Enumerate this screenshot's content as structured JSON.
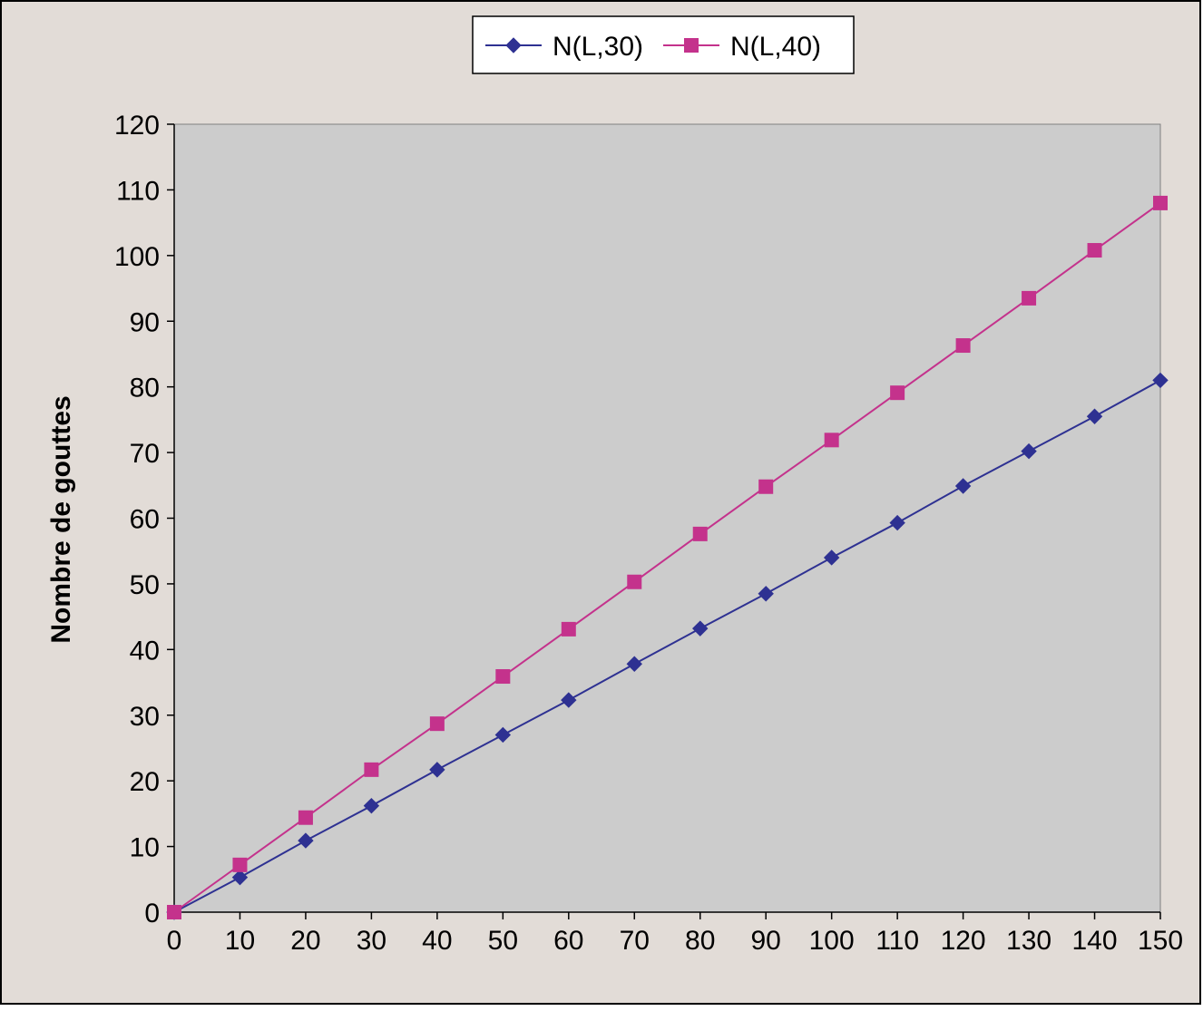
{
  "chart_data": {
    "type": "line",
    "title": "",
    "xlabel": "",
    "ylabel": "Nombre de gouttes",
    "x": [
      0,
      10,
      20,
      30,
      40,
      50,
      60,
      70,
      80,
      90,
      100,
      110,
      120,
      130,
      140,
      150
    ],
    "xlim": [
      0,
      150
    ],
    "ylim": [
      0,
      120
    ],
    "x_ticks": [
      "0",
      "10",
      "20",
      "30",
      "40",
      "50",
      "60",
      "70",
      "80",
      "90",
      "100",
      "110",
      "120",
      "130",
      "140",
      "150"
    ],
    "y_ticks": [
      "0",
      "10",
      "20",
      "30",
      "40",
      "50",
      "60",
      "70",
      "80",
      "90",
      "100",
      "110",
      "120"
    ],
    "grid": false,
    "legend_position": "top-center",
    "series": [
      {
        "name": "N(L,30)",
        "marker": "diamond",
        "color": "#2e3192",
        "values": [
          0,
          5.3,
          10.9,
          16.2,
          21.7,
          27,
          32.3,
          37.8,
          43.2,
          48.5,
          54,
          59.3,
          64.9,
          70.2,
          75.5,
          81
        ]
      },
      {
        "name": "N(L,40)",
        "marker": "square",
        "color": "#c4328c",
        "values": [
          0,
          7.2,
          14.4,
          21.7,
          28.7,
          35.9,
          43.1,
          50.3,
          57.6,
          64.8,
          71.9,
          79.1,
          86.3,
          93.5,
          100.8,
          108
        ]
      }
    ],
    "plot_background": "#cccccc",
    "chart_background": "#e2dcd7"
  }
}
